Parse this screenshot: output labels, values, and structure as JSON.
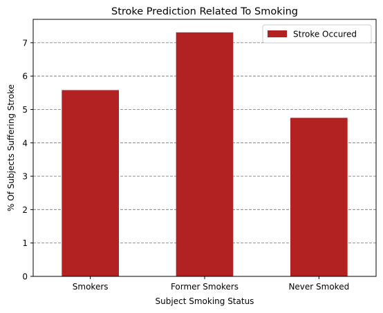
{
  "chart_data": {
    "type": "bar",
    "title": "Stroke Prediction Related To Smoking",
    "xlabel": "Subject Smoking Status",
    "ylabel": "% Of Subjects Suffering Stroke",
    "categories": [
      "Smokers",
      "Former Smokers",
      "Never Smoked"
    ],
    "series": [
      {
        "name": "Stroke Occured",
        "values": [
          5.58,
          7.31,
          4.75
        ],
        "color": "#b22222"
      }
    ],
    "ylim": [
      0,
      7.7
    ],
    "yticks": [
      0,
      1,
      2,
      3,
      4,
      5,
      6,
      7
    ],
    "grid": {
      "axis": "y",
      "style": "dashed",
      "color": "#808080"
    },
    "legend": "top-right"
  }
}
